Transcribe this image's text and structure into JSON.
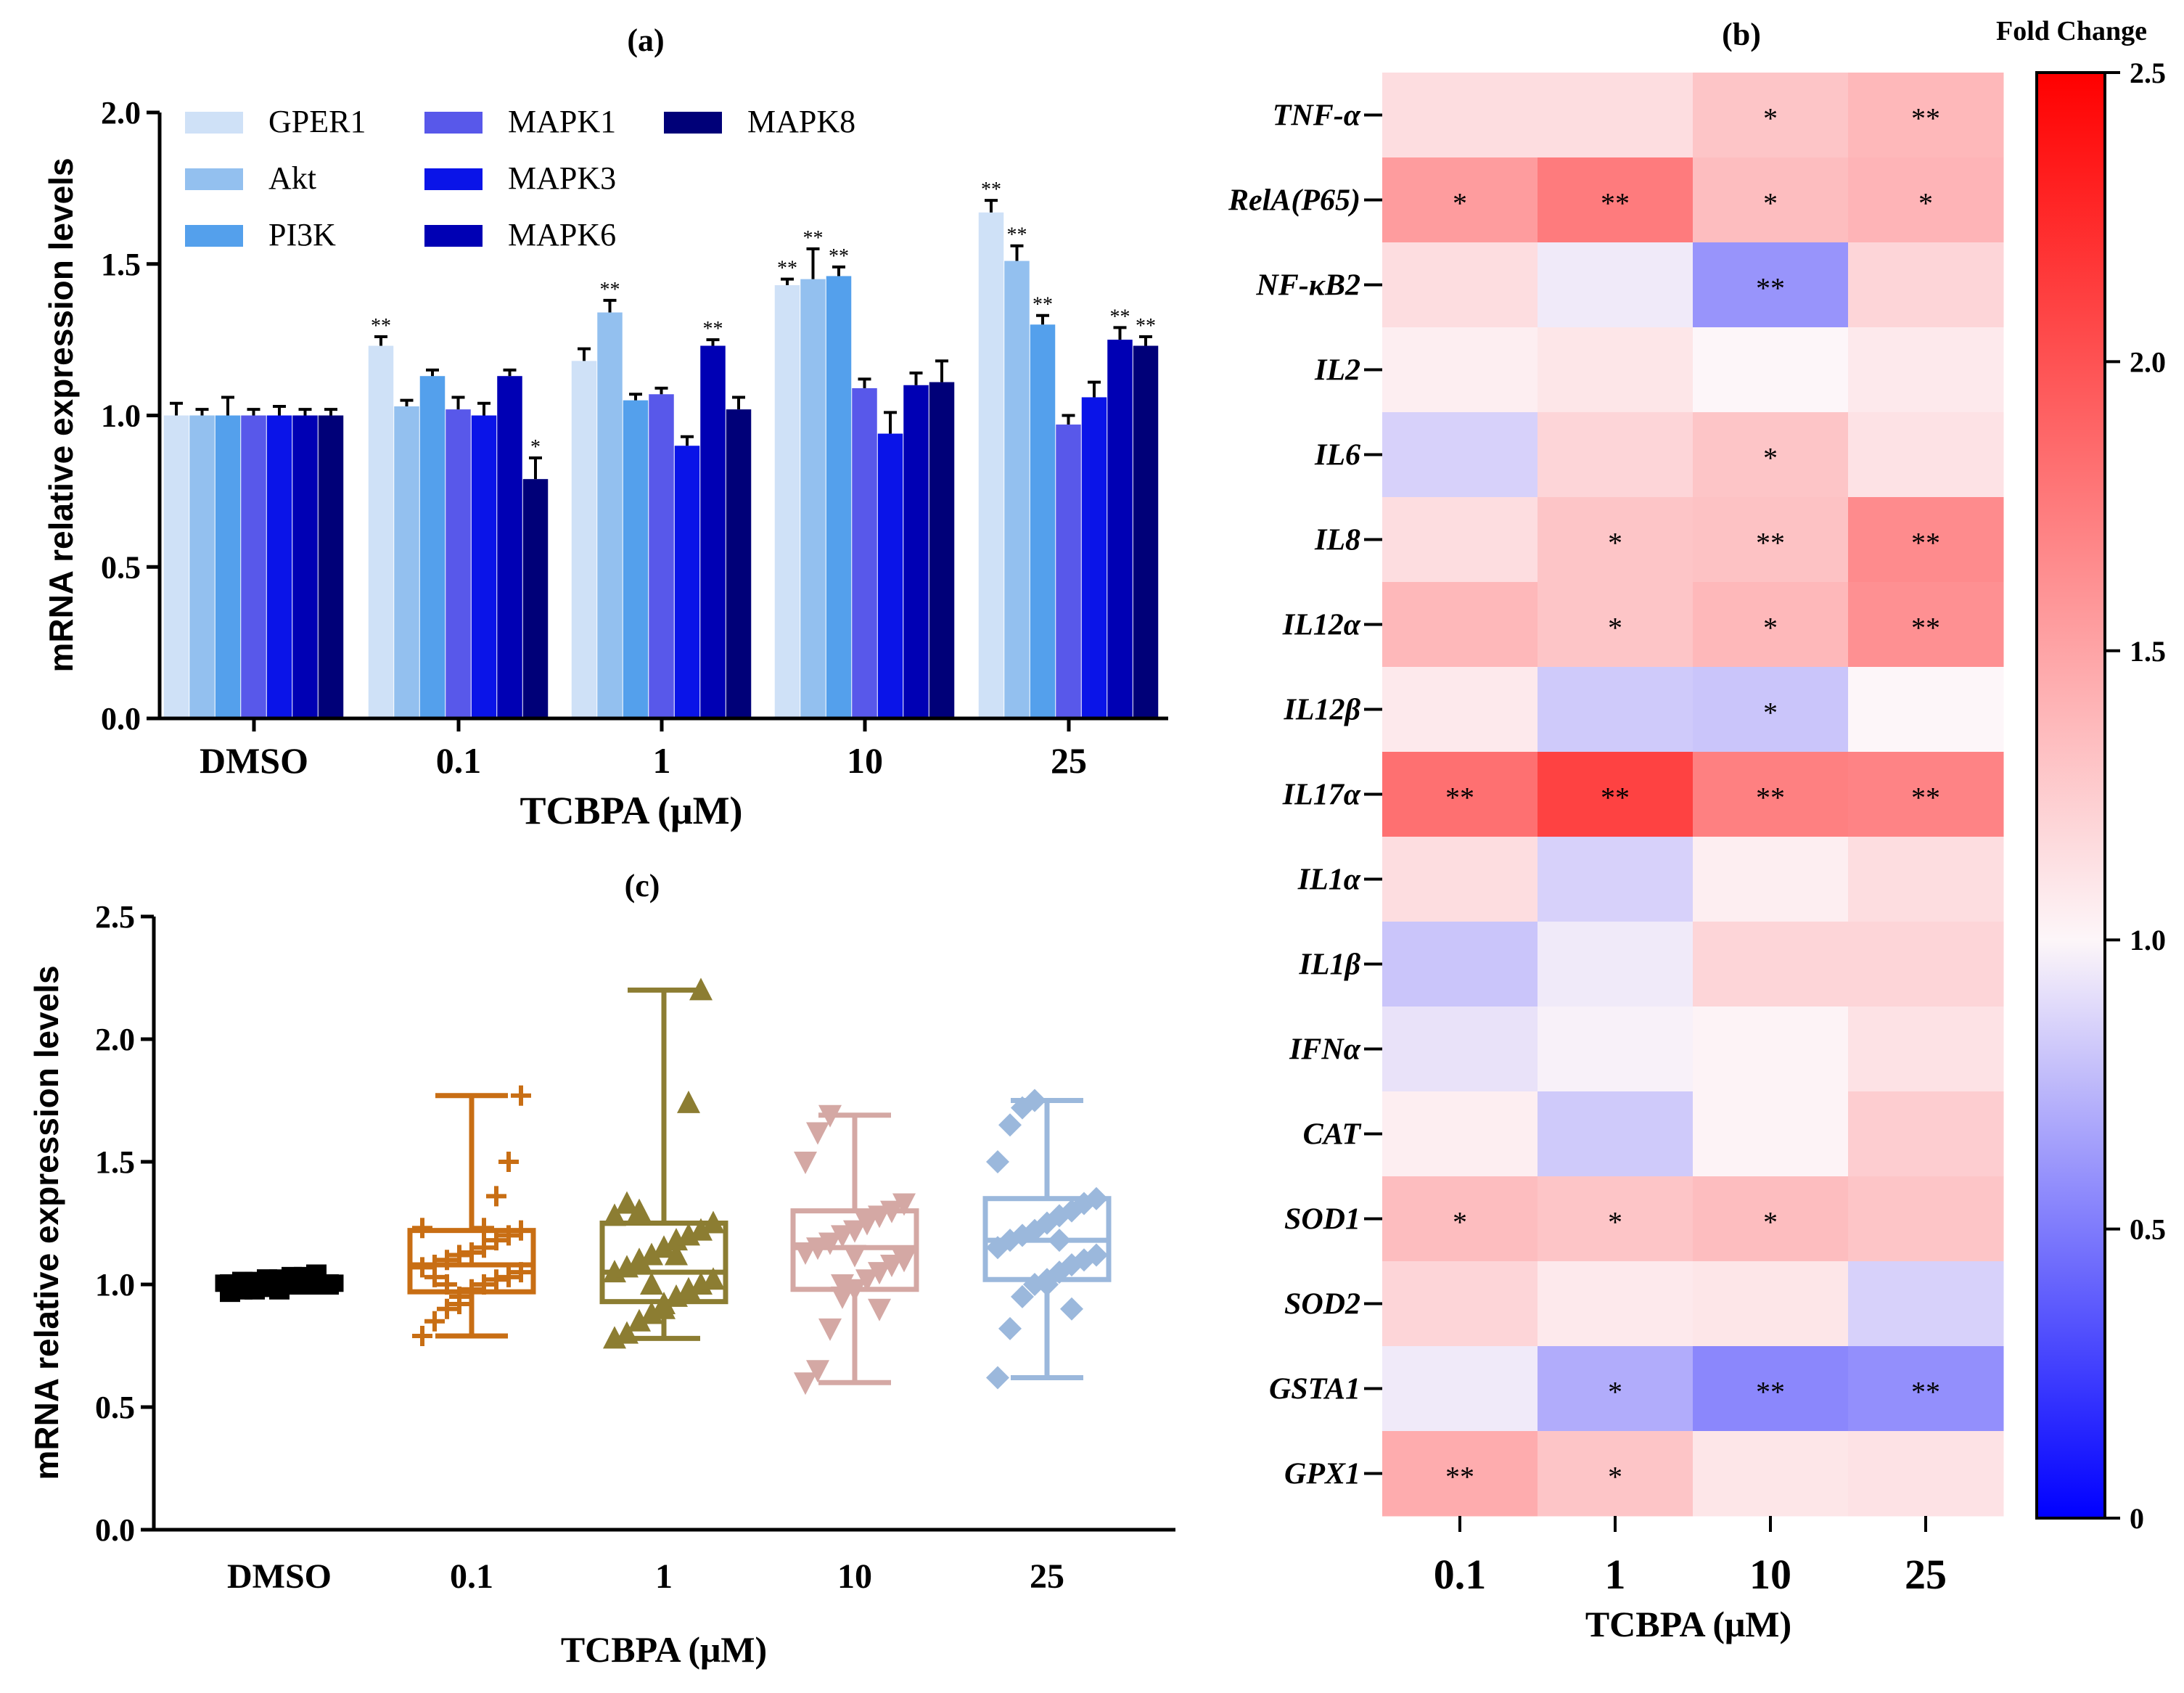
{
  "chart_data": [
    {
      "id": "a",
      "panel_label": "(a)",
      "type": "bar",
      "ylabel": "mRNA relative expression  levels",
      "xlabel": "TCBPA (μM)",
      "ylim": [
        0,
        2.0
      ],
      "yticks": [
        "0.0",
        "0.5",
        "1.0",
        "1.5",
        "2.0"
      ],
      "categories": [
        "DMSO",
        "0.1",
        "1",
        "10",
        "25"
      ],
      "legend_position": "top-left",
      "series": [
        {
          "name": "GPER1",
          "color": "#cfe1f7",
          "values": [
            1.0,
            1.23,
            1.18,
            1.43,
            1.67
          ],
          "errors": [
            0.04,
            0.03,
            0.04,
            0.02,
            0.04
          ],
          "sig": [
            "",
            "**",
            "",
            "**",
            "**"
          ]
        },
        {
          "name": "Akt",
          "color": "#93c0ef",
          "values": [
            1.0,
            1.03,
            1.34,
            1.45,
            1.51
          ],
          "errors": [
            0.02,
            0.02,
            0.04,
            0.1,
            0.05
          ],
          "sig": [
            "",
            "",
            "**",
            "**",
            "**"
          ]
        },
        {
          "name": "PI3K",
          "color": "#54a0ec",
          "values": [
            1.0,
            1.13,
            1.05,
            1.46,
            1.3
          ],
          "errors": [
            0.06,
            0.02,
            0.02,
            0.03,
            0.03
          ],
          "sig": [
            "",
            "",
            "",
            "**",
            "**"
          ]
        },
        {
          "name": "MAPK1",
          "color": "#5858ea",
          "values": [
            1.0,
            1.02,
            1.07,
            1.09,
            0.97
          ],
          "errors": [
            0.02,
            0.04,
            0.02,
            0.03,
            0.03
          ],
          "sig": [
            "",
            "",
            "",
            "",
            ""
          ]
        },
        {
          "name": "MAPK3",
          "color": "#0a14e8",
          "values": [
            1.0,
            1.0,
            0.9,
            0.94,
            1.06
          ],
          "errors": [
            0.03,
            0.04,
            0.03,
            0.07,
            0.05
          ],
          "sig": [
            "",
            "",
            "",
            "",
            ""
          ]
        },
        {
          "name": "MAPK6",
          "color": "#0000b4",
          "values": [
            1.0,
            1.13,
            1.23,
            1.1,
            1.25
          ],
          "errors": [
            0.02,
            0.02,
            0.02,
            0.04,
            0.04
          ],
          "sig": [
            "",
            "",
            "**",
            "",
            "**"
          ]
        },
        {
          "name": "MAPK8",
          "color": "#000078",
          "values": [
            1.0,
            0.79,
            1.02,
            1.11,
            1.23
          ],
          "errors": [
            0.02,
            0.07,
            0.04,
            0.07,
            0.03
          ],
          "sig": [
            "",
            "*",
            "",
            "",
            "**"
          ]
        }
      ]
    },
    {
      "id": "b",
      "panel_label": "(b)",
      "type": "heatmap",
      "colorbar_title": "Fold Change",
      "colorbar_ticks": [
        "0",
        "0.5",
        "1.0",
        "1.5",
        "2.0",
        "2.5"
      ],
      "zlim": [
        0,
        2.5
      ],
      "xlabel": "TCBPA (μM)",
      "columns": [
        "0.1",
        "1",
        "10",
        "25"
      ],
      "rows": [
        "TNF-α",
        "RelA(P65)",
        "NF-κB2",
        "IL2",
        "IL6",
        "IL8",
        "IL12α",
        "IL12β",
        "IL17α",
        "IL1α",
        "IL1β",
        "IFNα",
        "CAT",
        "SOD1",
        "SOD2",
        "GSTA1",
        "GPX1"
      ],
      "values": [
        [
          1.15,
          1.15,
          1.3,
          1.38
        ],
        [
          1.55,
          1.75,
          1.35,
          1.4
        ],
        [
          1.15,
          0.95,
          0.6,
          1.2
        ],
        [
          1.05,
          1.1,
          1.0,
          1.08
        ],
        [
          0.85,
          1.2,
          1.3,
          1.12
        ],
        [
          1.15,
          1.3,
          1.32,
          1.65
        ],
        [
          1.38,
          1.3,
          1.38,
          1.62
        ],
        [
          1.08,
          0.82,
          0.8,
          1.0
        ],
        [
          1.82,
          2.1,
          1.72,
          1.7
        ],
        [
          1.15,
          0.85,
          1.05,
          1.15
        ],
        [
          0.8,
          0.95,
          1.2,
          1.2
        ],
        [
          0.92,
          0.98,
          1.02,
          1.12
        ],
        [
          1.05,
          0.82,
          1.02,
          1.25
        ],
        [
          1.35,
          1.3,
          1.35,
          1.3
        ],
        [
          1.2,
          1.08,
          1.1,
          0.85
        ],
        [
          0.95,
          0.7,
          0.55,
          0.58
        ],
        [
          1.45,
          1.3,
          1.1,
          1.12
        ]
      ],
      "sig": [
        [
          "",
          "",
          "*",
          "**"
        ],
        [
          "*",
          "**",
          "*",
          "*"
        ],
        [
          "",
          "",
          "**",
          ""
        ],
        [
          "",
          "",
          "",
          ""
        ],
        [
          "",
          "",
          "*",
          ""
        ],
        [
          "",
          "*",
          "**",
          "**"
        ],
        [
          "",
          "*",
          "*",
          "**"
        ],
        [
          "",
          "",
          "*",
          ""
        ],
        [
          "**",
          "**",
          "**",
          "**"
        ],
        [
          "",
          "",
          "",
          ""
        ],
        [
          "",
          "",
          "",
          ""
        ],
        [
          "",
          "",
          "",
          ""
        ],
        [
          "",
          "",
          "",
          ""
        ],
        [
          "*",
          "*",
          "*",
          ""
        ],
        [
          "",
          "",
          "",
          ""
        ],
        [
          "",
          "*",
          "**",
          "**"
        ],
        [
          "**",
          "*",
          "",
          ""
        ]
      ]
    },
    {
      "id": "c",
      "panel_label": "(c)",
      "type": "boxplot",
      "ylabel": "mRNA relative expression levels",
      "xlabel": "TCBPA (μM)",
      "ylim": [
        0,
        2.5
      ],
      "yticks": [
        "0.0",
        "0.5",
        "1.0",
        "1.5",
        "2.0",
        "2.5"
      ],
      "categories": [
        "DMSO",
        "0.1",
        "1",
        "10",
        "25"
      ],
      "groups": [
        {
          "name": "DMSO",
          "color": "#000000",
          "marker": "square",
          "min": 0.97,
          "q1": 0.98,
          "median": 1.0,
          "q3": 1.03,
          "max": 1.04,
          "points": [
            0.97,
            0.98,
            0.98,
            0.99,
            0.99,
            1.0,
            1.0,
            1.0,
            1.0,
            1.0,
            1.01,
            1.01,
            1.02,
            1.02,
            1.03,
            1.03,
            1.04,
            1.0,
            0.99,
            1.01,
            1.0,
            1.02,
            0.98,
            1.0
          ]
        },
        {
          "name": "0.1",
          "color": "#c86e14",
          "marker": "plus",
          "min": 0.79,
          "q1": 0.97,
          "median": 1.08,
          "q3": 1.22,
          "max": 1.77,
          "points": [
            0.79,
            0.85,
            0.9,
            0.95,
            0.98,
            1.0,
            1.02,
            1.03,
            1.05,
            1.07,
            1.08,
            1.1,
            1.12,
            1.13,
            1.15,
            1.18,
            1.2,
            1.22,
            1.23,
            1.03,
            1.0,
            0.92,
            1.13,
            1.23,
            1.36,
            1.5,
            1.77
          ]
        },
        {
          "name": "1",
          "color": "#8c7d32",
          "marker": "triangle-up",
          "min": 0.78,
          "q1": 0.93,
          "median": 1.05,
          "q3": 1.25,
          "max": 2.2,
          "points": [
            0.78,
            0.8,
            0.85,
            0.88,
            0.92,
            0.95,
            0.98,
            1.0,
            1.02,
            1.05,
            1.07,
            1.1,
            1.12,
            1.15,
            1.18,
            1.2,
            1.22,
            1.25,
            1.28,
            1.33,
            1.3,
            1.0,
            0.9,
            1.12,
            1.74,
            2.2
          ]
        },
        {
          "name": "10",
          "color": "#d4a8a4",
          "marker": "triangle-down",
          "min": 0.6,
          "q1": 0.98,
          "median": 1.15,
          "q3": 1.3,
          "max": 1.69,
          "points": [
            0.6,
            0.65,
            0.82,
            0.95,
            0.98,
            1.02,
            1.05,
            1.08,
            1.1,
            1.13,
            1.15,
            1.17,
            1.2,
            1.22,
            1.25,
            1.28,
            1.3,
            1.33,
            1.5,
            1.62,
            1.69,
            1.0,
            1.12,
            1.26,
            0.9
          ]
        },
        {
          "name": "25",
          "color": "#9bb8dc",
          "marker": "diamond",
          "min": 0.62,
          "q1": 1.02,
          "median": 1.18,
          "q3": 1.35,
          "max": 1.75,
          "points": [
            0.62,
            0.82,
            0.95,
            1.0,
            1.02,
            1.05,
            1.08,
            1.1,
            1.12,
            1.15,
            1.18,
            1.2,
            1.22,
            1.25,
            1.28,
            1.3,
            1.33,
            1.35,
            1.5,
            1.65,
            1.72,
            1.75,
            1.0,
            1.18,
            0.9
          ]
        }
      ]
    }
  ]
}
